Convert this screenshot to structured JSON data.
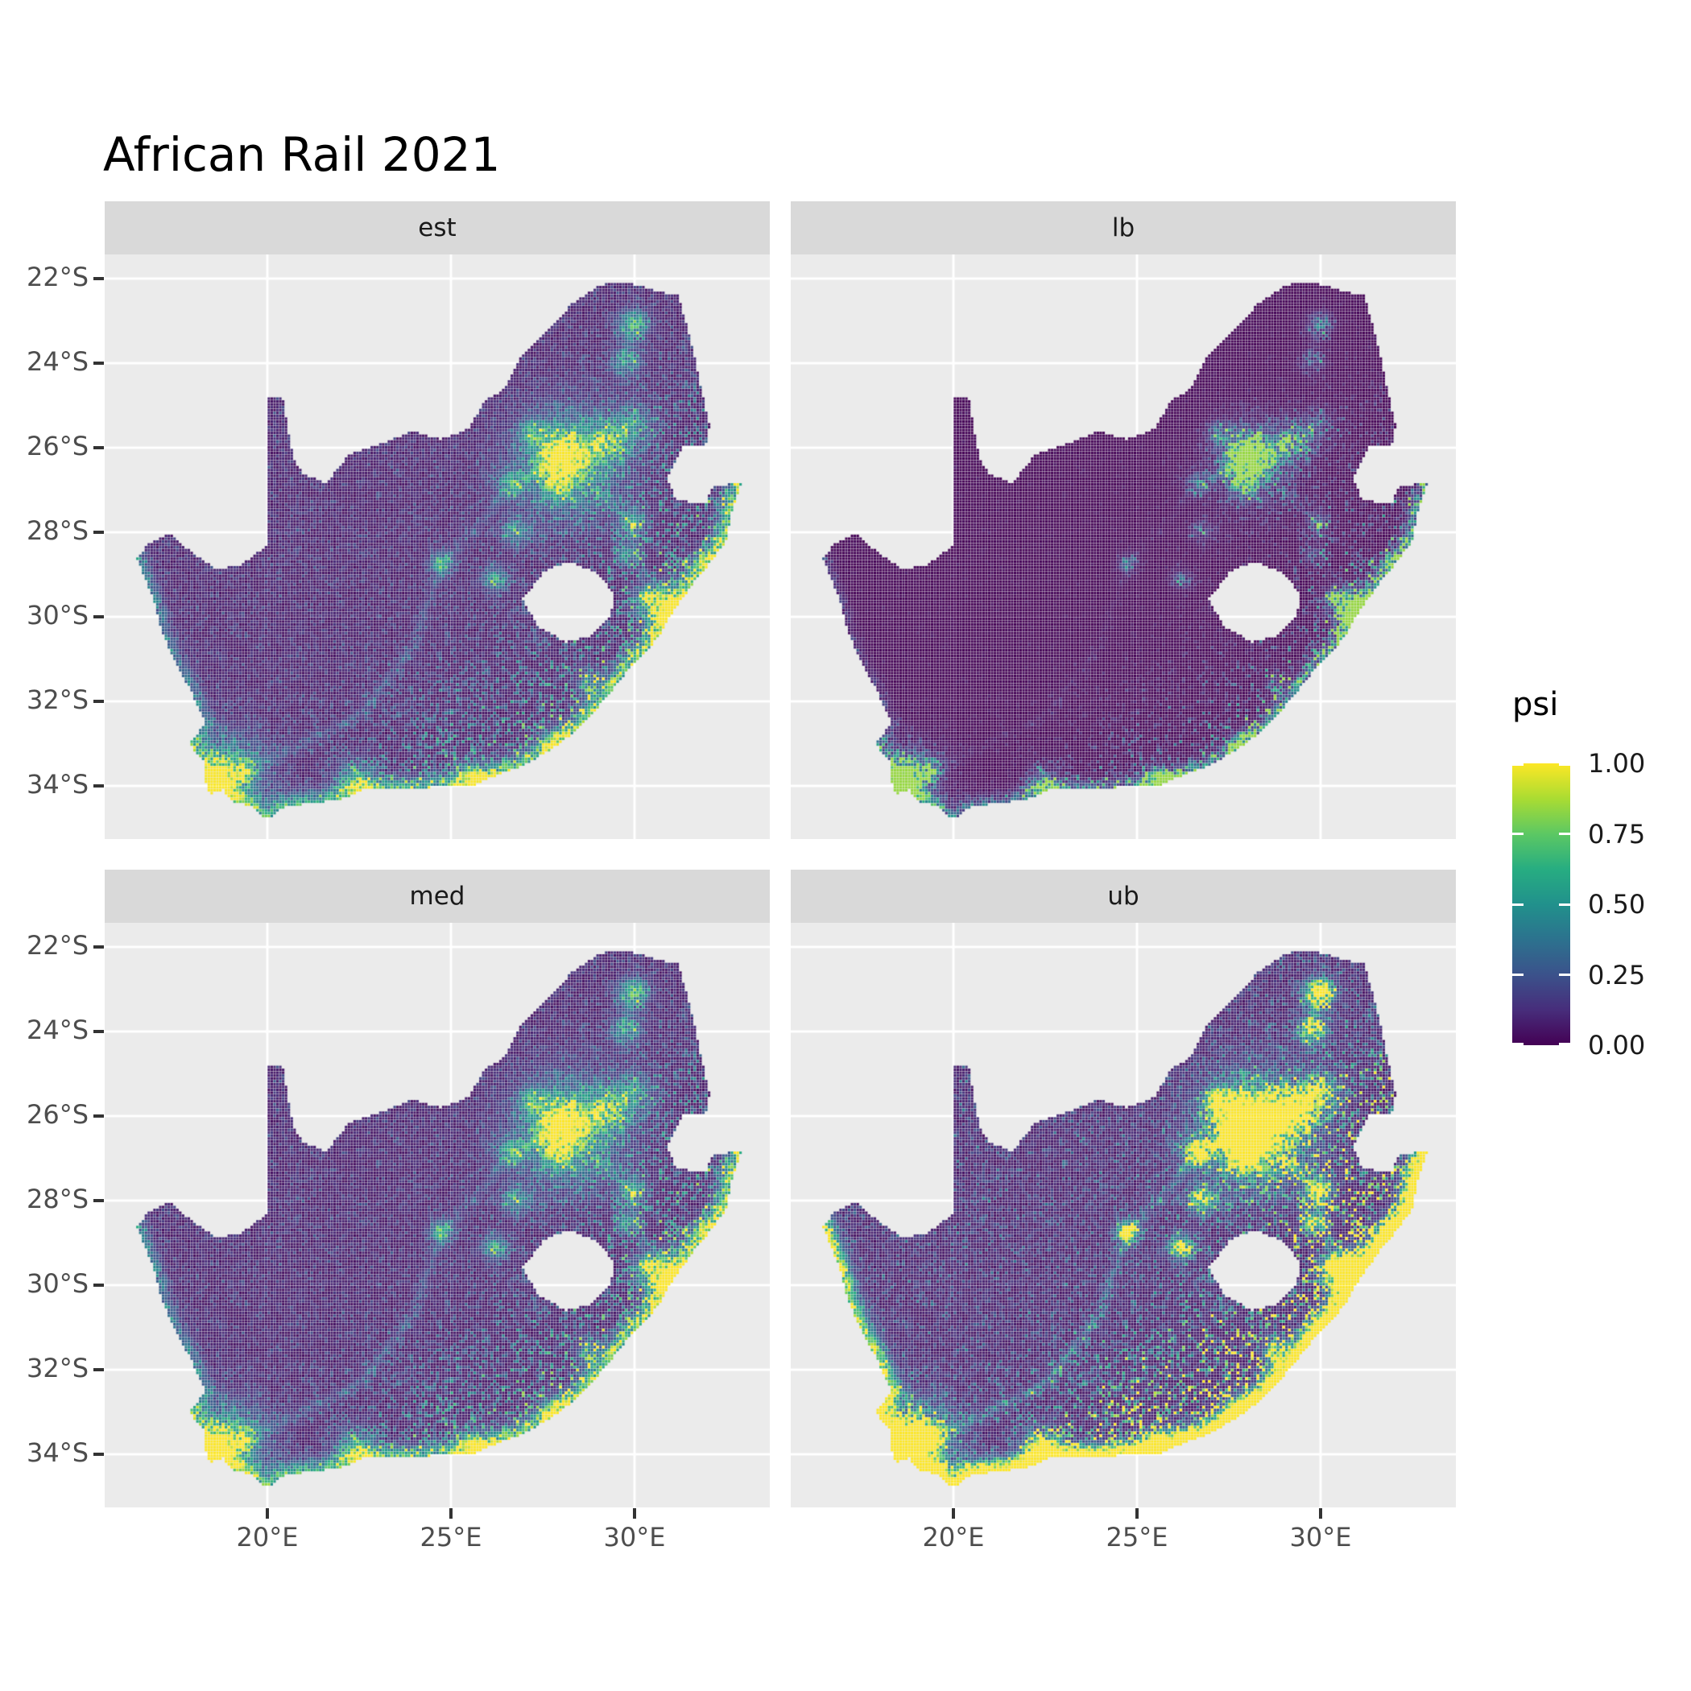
{
  "title": "African Rail 2021",
  "facets": [
    {
      "label": "est",
      "row": 0,
      "col": 0,
      "transform": "est"
    },
    {
      "label": "lb",
      "row": 0,
      "col": 1,
      "transform": "lb"
    },
    {
      "label": "med",
      "row": 1,
      "col": 0,
      "transform": "med"
    },
    {
      "label": "ub",
      "row": 1,
      "col": 1,
      "transform": "ub"
    }
  ],
  "axes": {
    "x": {
      "ticks": [
        {
          "label": "20°E",
          "lon": 20
        },
        {
          "label": "25°E",
          "lon": 25
        },
        {
          "label": "30°E",
          "lon": 30
        }
      ]
    },
    "y": {
      "ticks": [
        {
          "label": "22°S",
          "lat": -22
        },
        {
          "label": "24°S",
          "lat": -24
        },
        {
          "label": "26°S",
          "lat": -26
        },
        {
          "label": "28°S",
          "lat": -28
        },
        {
          "label": "30°S",
          "lat": -30
        },
        {
          "label": "32°S",
          "lat": -32
        },
        {
          "label": "34°S",
          "lat": -34
        }
      ]
    }
  },
  "legend": {
    "title": "psi",
    "entries": [
      {
        "label": "1.00",
        "value": 1.0
      },
      {
        "label": "0.75",
        "value": 0.75
      },
      {
        "label": "0.50",
        "value": 0.5
      },
      {
        "label": "0.25",
        "value": 0.25
      },
      {
        "label": "0.00",
        "value": 0.0
      }
    ]
  },
  "colors": {
    "background": "#FFFFFF",
    "panel_bg": "#EBEBEB",
    "strip_bg": "#D9D9D9",
    "grid": "#FFFFFF",
    "axis_text": "#4D4D4D",
    "tick_mark": "#333333",
    "title_text": "#000000"
  },
  "chart_data": {
    "type": "heatmap",
    "title": "African Rail 2021",
    "variable": "psi",
    "value_range": [
      0,
      1
    ],
    "palette": "viridis",
    "facets": [
      "est",
      "lb",
      "med",
      "ub"
    ],
    "facet_description": "2x2 faceted raster maps of South Africa showing psi (0-1, viridis): est = estimate, lb = lower bound (darker), med = median (similar to est), ub = upper bound (much brighter, coasts saturated yellow)",
    "x_range_lon": [
      15.57,
      33.68
    ],
    "y_range_lat": [
      -35.52,
      -21.43
    ],
    "cell_size_px": 3.55,
    "viridis_stops": [
      [
        0.0,
        "#440154"
      ],
      [
        0.125,
        "#472D7B"
      ],
      [
        0.25,
        "#3B528B"
      ],
      [
        0.375,
        "#2C728E"
      ],
      [
        0.5,
        "#21918C"
      ],
      [
        0.625,
        "#27AD81"
      ],
      [
        0.75,
        "#5CC863"
      ],
      [
        0.875,
        "#AADC32"
      ],
      [
        1.0,
        "#FDE725"
      ]
    ],
    "south_africa_boundary": [
      [
        16.45,
        -28.6
      ],
      [
        16.8,
        -28.25
      ],
      [
        17.35,
        -28.05
      ],
      [
        17.9,
        -28.45
      ],
      [
        18.6,
        -28.87
      ],
      [
        19.3,
        -28.78
      ],
      [
        19.99,
        -28.32
      ],
      [
        19.98,
        -26.5
      ],
      [
        19.99,
        -24.78
      ],
      [
        20.45,
        -24.85
      ],
      [
        20.55,
        -25.5
      ],
      [
        20.7,
        -26.2
      ],
      [
        20.95,
        -26.6
      ],
      [
        21.6,
        -26.85
      ],
      [
        22.25,
        -26.15
      ],
      [
        23.0,
        -25.95
      ],
      [
        23.95,
        -25.62
      ],
      [
        24.75,
        -25.8
      ],
      [
        25.5,
        -25.55
      ],
      [
        25.9,
        -24.92
      ],
      [
        26.45,
        -24.62
      ],
      [
        26.9,
        -23.85
      ],
      [
        27.7,
        -23.2
      ],
      [
        28.3,
        -22.6
      ],
      [
        29.05,
        -22.15
      ],
      [
        29.85,
        -22.1
      ],
      [
        30.6,
        -22.3
      ],
      [
        31.2,
        -22.4
      ],
      [
        31.55,
        -23.5
      ],
      [
        31.75,
        -24.3
      ],
      [
        32.05,
        -25.5
      ],
      [
        31.95,
        -25.95
      ],
      [
        31.35,
        -25.95
      ],
      [
        30.9,
        -26.75
      ],
      [
        31.15,
        -27.25
      ],
      [
        31.95,
        -27.32
      ],
      [
        32.15,
        -26.9
      ],
      [
        32.9,
        -26.85
      ],
      [
        32.65,
        -27.55
      ],
      [
        32.5,
        -28.2
      ],
      [
        32.1,
        -28.7
      ],
      [
        31.7,
        -29.1
      ],
      [
        31.05,
        -29.88
      ],
      [
        30.65,
        -30.5
      ],
      [
        29.95,
        -31.15
      ],
      [
        29.25,
        -31.9
      ],
      [
        28.55,
        -32.6
      ],
      [
        27.9,
        -33.05
      ],
      [
        27.0,
        -33.52
      ],
      [
        26.2,
        -33.77
      ],
      [
        25.65,
        -34.0
      ],
      [
        24.9,
        -34.02
      ],
      [
        24.0,
        -34.06
      ],
      [
        23.3,
        -34.1
      ],
      [
        22.6,
        -34.08
      ],
      [
        22.1,
        -34.3
      ],
      [
        21.3,
        -34.42
      ],
      [
        20.5,
        -34.48
      ],
      [
        20.0,
        -34.8
      ],
      [
        19.55,
        -34.48
      ],
      [
        19.05,
        -34.38
      ],
      [
        18.8,
        -34.1
      ],
      [
        18.45,
        -34.2
      ],
      [
        18.32,
        -33.92
      ],
      [
        18.3,
        -33.48
      ],
      [
        17.88,
        -33.0
      ],
      [
        18.15,
        -32.72
      ],
      [
        18.3,
        -32.5
      ],
      [
        17.95,
        -31.8
      ],
      [
        17.5,
        -31.1
      ],
      [
        17.15,
        -30.4
      ],
      [
        16.9,
        -29.6
      ],
      [
        16.45,
        -28.6
      ]
    ],
    "lesotho_hole": [
      [
        26.95,
        -29.6
      ],
      [
        27.55,
        -28.92
      ],
      [
        28.2,
        -28.7
      ],
      [
        28.95,
        -28.95
      ],
      [
        29.45,
        -29.45
      ],
      [
        29.35,
        -30.0
      ],
      [
        28.85,
        -30.45
      ],
      [
        28.15,
        -30.6
      ],
      [
        27.4,
        -30.25
      ],
      [
        26.95,
        -29.6
      ]
    ],
    "east_coast": [
      [
        32.9,
        -26.85
      ],
      [
        32.65,
        -27.55
      ],
      [
        32.5,
        -28.2
      ],
      [
        32.1,
        -28.7
      ],
      [
        31.7,
        -29.1
      ],
      [
        31.05,
        -29.88
      ],
      [
        30.65,
        -30.5
      ],
      [
        29.95,
        -31.15
      ],
      [
        29.25,
        -31.9
      ],
      [
        28.55,
        -32.6
      ],
      [
        27.9,
        -33.05
      ],
      [
        27.0,
        -33.52
      ],
      [
        26.2,
        -33.77
      ],
      [
        25.65,
        -34.0
      ]
    ],
    "south_coast": [
      [
        25.65,
        -34.0
      ],
      [
        24.9,
        -34.02
      ],
      [
        24.0,
        -34.06
      ],
      [
        23.3,
        -34.1
      ],
      [
        22.6,
        -34.08
      ],
      [
        22.1,
        -34.3
      ],
      [
        21.3,
        -34.42
      ],
      [
        20.5,
        -34.48
      ],
      [
        20.0,
        -34.8
      ],
      [
        19.55,
        -34.48
      ],
      [
        19.05,
        -34.38
      ],
      [
        18.8,
        -34.1
      ],
      [
        18.45,
        -34.2
      ],
      [
        18.32,
        -33.92
      ]
    ],
    "west_coast": [
      [
        18.3,
        -33.48
      ],
      [
        17.88,
        -33.0
      ],
      [
        18.15,
        -32.72
      ],
      [
        18.3,
        -32.5
      ],
      [
        17.95,
        -31.8
      ],
      [
        17.5,
        -31.1
      ],
      [
        17.15,
        -30.4
      ],
      [
        16.9,
        -29.6
      ],
      [
        16.45,
        -28.6
      ]
    ],
    "hotspots": [
      [
        28.05,
        -26.2,
        0.5,
        0.9
      ],
      [
        28.2,
        -26.35,
        1.2,
        0.42
      ],
      [
        27.95,
        -26.85,
        0.35,
        0.5
      ],
      [
        27.25,
        -25.65,
        0.3,
        0.35
      ],
      [
        29.2,
        -25.87,
        0.45,
        0.5
      ],
      [
        30.0,
        -25.45,
        0.45,
        0.3
      ],
      [
        29.95,
        -23.1,
        0.33,
        0.55
      ],
      [
        29.8,
        -23.95,
        0.33,
        0.38
      ],
      [
        30.95,
        -29.85,
        0.5,
        0.85
      ],
      [
        30.4,
        -29.6,
        0.3,
        0.5
      ],
      [
        32.0,
        -28.8,
        0.33,
        0.5
      ],
      [
        29.95,
        -27.75,
        0.3,
        0.4
      ],
      [
        29.8,
        -28.55,
        0.25,
        0.35
      ],
      [
        26.2,
        -29.12,
        0.28,
        0.45
      ],
      [
        24.75,
        -28.74,
        0.25,
        0.4
      ],
      [
        26.75,
        -27.98,
        0.3,
        0.38
      ],
      [
        26.65,
        -26.87,
        0.3,
        0.35
      ],
      [
        27.9,
        -33.02,
        0.35,
        0.55
      ],
      [
        28.8,
        -31.55,
        0.3,
        0.35
      ],
      [
        25.6,
        -33.92,
        0.4,
        0.6
      ],
      [
        22.45,
        -33.97,
        0.45,
        0.5
      ],
      [
        18.6,
        -33.9,
        0.5,
        0.95
      ],
      [
        18.95,
        -33.68,
        0.85,
        0.4
      ],
      [
        19.45,
        -33.65,
        0.25,
        0.3
      ],
      [
        18.0,
        -32.95,
        0.25,
        0.3
      ]
    ],
    "corridors": [
      [
        [
          18.7,
          -33.8
        ],
        [
          20.5,
          -33.2
        ],
        [
          22.6,
          -32.3
        ],
        [
          24.0,
          -30.65
        ],
        [
          24.75,
          -28.74
        ]
      ],
      [
        [
          24.75,
          -28.74
        ],
        [
          25.8,
          -27.8
        ],
        [
          26.65,
          -26.87
        ],
        [
          28.0,
          -26.3
        ]
      ],
      [
        [
          28.05,
          -26.2
        ],
        [
          29.0,
          -27.0
        ],
        [
          29.9,
          -27.75
        ],
        [
          30.4,
          -29.6
        ],
        [
          30.95,
          -29.85
        ]
      ]
    ],
    "facet_value_transforms": {
      "est": "v",
      "lb": "0.85 * v^2.1",
      "med": "min(1, 1.06*v)",
      "ub": "min(1, v*(1+2.2*v) + 0.3*coast)"
    }
  }
}
